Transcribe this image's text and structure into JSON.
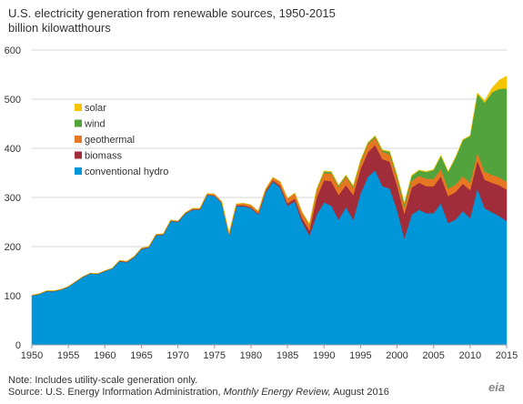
{
  "chart_data": {
    "type": "area",
    "stacked": true,
    "title": "U.S. electricity generation from renewable sources, 1950-2015",
    "ylabel": "billion kilowatthours",
    "ylim": [
      0,
      600
    ],
    "xlim": [
      1950,
      2015
    ],
    "y_ticks": [
      0,
      100,
      200,
      300,
      400,
      500,
      600
    ],
    "x_ticks": [
      1950,
      1955,
      1960,
      1965,
      1970,
      1975,
      1980,
      1985,
      1990,
      1995,
      2000,
      2005,
      2010,
      2015
    ],
    "grid": true,
    "legend_placement": "top-left",
    "x": [
      1950,
      1951,
      1952,
      1953,
      1954,
      1955,
      1956,
      1957,
      1958,
      1959,
      1960,
      1961,
      1962,
      1963,
      1964,
      1965,
      1966,
      1967,
      1968,
      1969,
      1970,
      1971,
      1972,
      1973,
      1974,
      1975,
      1976,
      1977,
      1978,
      1979,
      1980,
      1981,
      1982,
      1983,
      1984,
      1985,
      1986,
      1987,
      1988,
      1989,
      1990,
      1991,
      1992,
      1993,
      1994,
      1995,
      1996,
      1997,
      1998,
      1999,
      2000,
      2001,
      2002,
      2003,
      2004,
      2005,
      2006,
      2007,
      2008,
      2009,
      2010,
      2011,
      2012,
      2013,
      2014,
      2015
    ],
    "series": [
      {
        "name": "conventional hydro",
        "color": "#0096d7",
        "values": [
          100,
          103,
          109,
          109,
          112,
          118,
          128,
          138,
          145,
          144,
          150,
          155,
          170,
          168,
          178,
          195,
          198,
          223,
          224,
          252,
          250,
          267,
          275,
          275,
          305,
          303,
          288,
          222,
          282,
          282,
          278,
          265,
          310,
          332,
          320,
          283,
          292,
          250,
          223,
          265,
          290,
          283,
          255,
          280,
          255,
          308,
          342,
          355,
          323,
          318,
          275,
          217,
          265,
          275,
          268,
          268,
          288,
          248,
          255,
          272,
          258,
          318,
          278,
          270,
          262,
          252
        ]
      },
      {
        "name": "biomass",
        "color": "#a12d3a",
        "values": [
          1,
          1,
          1,
          1,
          1,
          1,
          1,
          1,
          1,
          1,
          1,
          1,
          1,
          1,
          1,
          1,
          1,
          1,
          1,
          1,
          1,
          1,
          1,
          1,
          1,
          1,
          1,
          1,
          2,
          2,
          2,
          2,
          3,
          3,
          4,
          5,
          6,
          8,
          10,
          35,
          45,
          50,
          50,
          45,
          50,
          50,
          50,
          52,
          55,
          55,
          50,
          50,
          55,
          55,
          55,
          55,
          55,
          55,
          56,
          56,
          57,
          57,
          58,
          60,
          63,
          64
        ]
      },
      {
        "name": "geothermal",
        "color": "#e87722",
        "values": [
          0,
          0,
          0,
          0,
          0,
          0,
          0,
          0,
          0,
          0,
          0,
          0,
          1,
          1,
          1,
          1,
          1,
          1,
          1,
          1,
          1,
          1,
          2,
          2,
          2,
          3,
          3,
          4,
          3,
          4,
          5,
          5,
          4,
          6,
          8,
          10,
          11,
          11,
          12,
          15,
          15,
          16,
          16,
          17,
          15,
          14,
          16,
          15,
          15,
          15,
          14,
          14,
          14,
          14,
          15,
          15,
          15,
          15,
          15,
          15,
          15,
          16,
          16,
          16,
          16,
          16
        ]
      },
      {
        "name": "wind",
        "color": "#52a33b",
        "values": [
          0,
          0,
          0,
          0,
          0,
          0,
          0,
          0,
          0,
          0,
          0,
          0,
          0,
          0,
          0,
          0,
          0,
          0,
          0,
          0,
          0,
          0,
          0,
          0,
          0,
          0,
          0,
          0,
          0,
          0,
          0,
          0,
          0,
          0,
          0,
          0,
          0,
          1,
          1,
          2,
          3,
          3,
          3,
          3,
          3,
          3,
          3,
          3,
          3,
          5,
          6,
          7,
          10,
          11,
          14,
          18,
          27,
          34,
          55,
          74,
          95,
          120,
          141,
          168,
          180,
          190
        ]
      },
      {
        "name": "solar",
        "color": "#f5c400",
        "values": [
          0,
          0,
          0,
          0,
          0,
          0,
          0,
          0,
          0,
          0,
          0,
          0,
          0,
          0,
          0,
          0,
          0,
          0,
          0,
          0,
          0,
          0,
          0,
          0,
          0,
          0,
          0,
          0,
          0,
          0,
          0,
          0,
          0,
          0,
          0,
          0,
          0,
          0,
          0,
          0,
          1,
          1,
          1,
          1,
          1,
          1,
          1,
          1,
          1,
          1,
          1,
          1,
          1,
          1,
          1,
          1,
          1,
          1,
          1,
          1,
          1,
          2,
          4,
          9,
          18,
          25
        ]
      }
    ]
  },
  "footer": {
    "note": "Note: Includes utility-scale generation only.",
    "source_prefix": "Source: U.S. Energy Information Administration,",
    "source_title": "Monthly Energy Review,",
    "source_date": "August 2016",
    "logo": "eia"
  }
}
